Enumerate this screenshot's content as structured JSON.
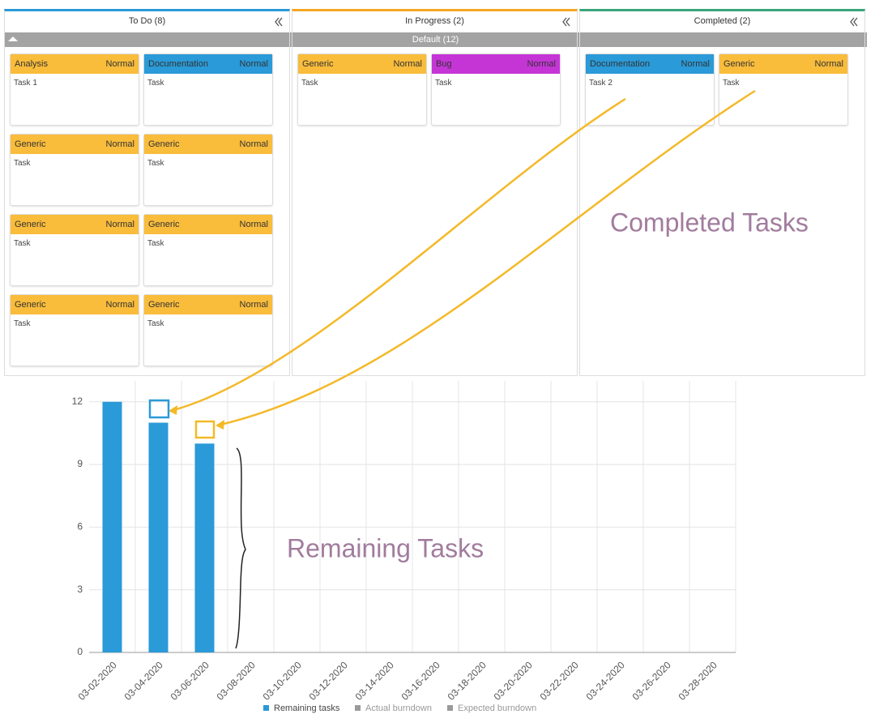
{
  "board": {
    "swimlane": "Default (12)",
    "columns": [
      {
        "title": "To Do (8)",
        "color": "#2a9ad8",
        "cards": [
          {
            "type": "Analysis",
            "priority": "Normal",
            "text": "Task 1",
            "color": "#f9bc3b"
          },
          {
            "type": "Documentation",
            "priority": "Normal",
            "text": "Task",
            "color": "#2a9ad8"
          },
          {
            "type": "Generic",
            "priority": "Normal",
            "text": "Task",
            "color": "#f9bc3b"
          },
          {
            "type": "Generic",
            "priority": "Normal",
            "text": "Task",
            "color": "#f9bc3b"
          },
          {
            "type": "Generic",
            "priority": "Normal",
            "text": "Task",
            "color": "#f9bc3b"
          },
          {
            "type": "Generic",
            "priority": "Normal",
            "text": "Task",
            "color": "#f9bc3b"
          },
          {
            "type": "Generic",
            "priority": "Normal",
            "text": "Task",
            "color": "#f9bc3b"
          },
          {
            "type": "Generic",
            "priority": "Normal",
            "text": "Task",
            "color": "#f9bc3b"
          }
        ]
      },
      {
        "title": "In Progress (2)",
        "color": "#f5a623",
        "cards": [
          {
            "type": "Generic",
            "priority": "Normal",
            "text": "Task",
            "color": "#f9bc3b"
          },
          {
            "type": "Bug",
            "priority": "Normal",
            "text": "Task",
            "color": "#c535d6"
          }
        ]
      },
      {
        "title": "Completed (2)",
        "color": "#3aa57b",
        "cards": [
          {
            "type": "Documentation",
            "priority": "Normal",
            "text": "Task 2",
            "color": "#2a9ad8"
          },
          {
            "type": "Generic",
            "priority": "Normal",
            "text": "Task",
            "color": "#f9bc3b"
          }
        ]
      }
    ]
  },
  "chart_data": {
    "type": "bar",
    "annotations": [
      "Completed Tasks",
      "Remaining Tasks"
    ],
    "categories": [
      "03-02-2020",
      "03-04-2020",
      "03-06-2020",
      "03-08-2020",
      "03-10-2020",
      "03-12-2020",
      "03-14-2020",
      "03-16-2020",
      "03-18-2020",
      "03-20-2020",
      "03-22-2020",
      "03-24-2020",
      "03-26-2020",
      "03-28-2020"
    ],
    "series": [
      {
        "name": "Remaining tasks",
        "color": "#2a9ad8",
        "values": [
          12,
          11,
          10,
          null,
          null,
          null,
          null,
          null,
          null,
          null,
          null,
          null,
          null,
          null
        ]
      },
      {
        "name": "Actual burndown",
        "color": "#9a9a9a",
        "values": [
          null,
          null,
          null,
          null,
          null,
          null,
          null,
          null,
          null,
          null,
          null,
          null,
          null,
          null
        ]
      },
      {
        "name": "Expected burndown",
        "color": "#9a9a9a",
        "values": [
          null,
          null,
          null,
          null,
          null,
          null,
          null,
          null,
          null,
          null,
          null,
          null,
          null,
          null
        ]
      }
    ],
    "ylim": [
      0,
      13
    ],
    "yticks": [
      0,
      3,
      6,
      9,
      12
    ],
    "grid": true
  }
}
